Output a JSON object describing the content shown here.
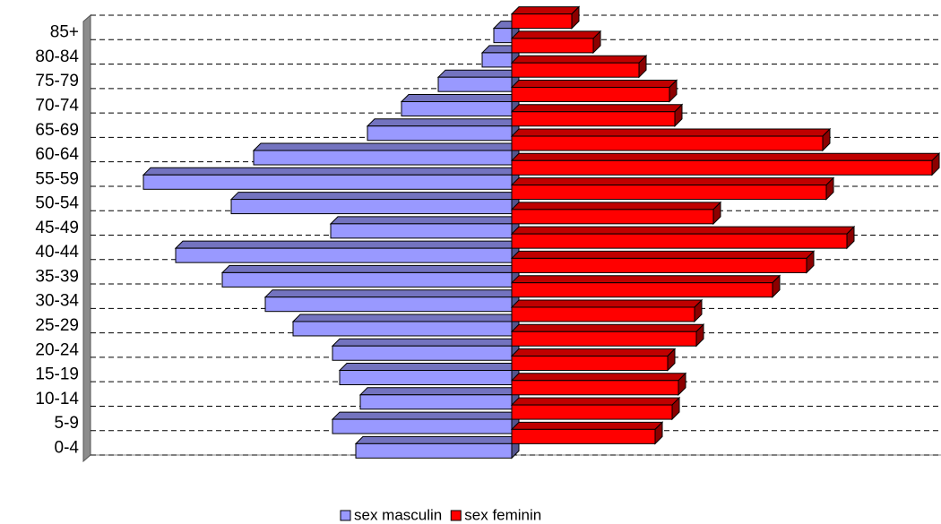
{
  "chart_data": {
    "type": "pyramid",
    "categories": [
      "85+",
      "80-84",
      "75-79",
      "70-74",
      "65-69",
      "60-64",
      "55-59",
      "50-54",
      "45-49",
      "40-44",
      "35-39",
      "30-34",
      "25-29",
      "20-24",
      "15-19",
      "10-14",
      "5-9",
      "0-4"
    ],
    "series": [
      {
        "name": "sex masculin",
        "color": "#9999ff",
        "values": [
          20,
          33,
          82,
          123,
          161,
          288,
          411,
          313,
          202,
          375,
          323,
          275,
          244,
          200,
          192,
          169,
          200,
          174
        ]
      },
      {
        "name": "sex feminin",
        "color": "#ff0000",
        "values": [
          67,
          91,
          142,
          176,
          182,
          347,
          469,
          351,
          225,
          374,
          329,
          291,
          204,
          206,
          174,
          186,
          179,
          160
        ]
      }
    ],
    "xlim": [
      0,
      470
    ],
    "grid": true,
    "legend": "bottom"
  }
}
